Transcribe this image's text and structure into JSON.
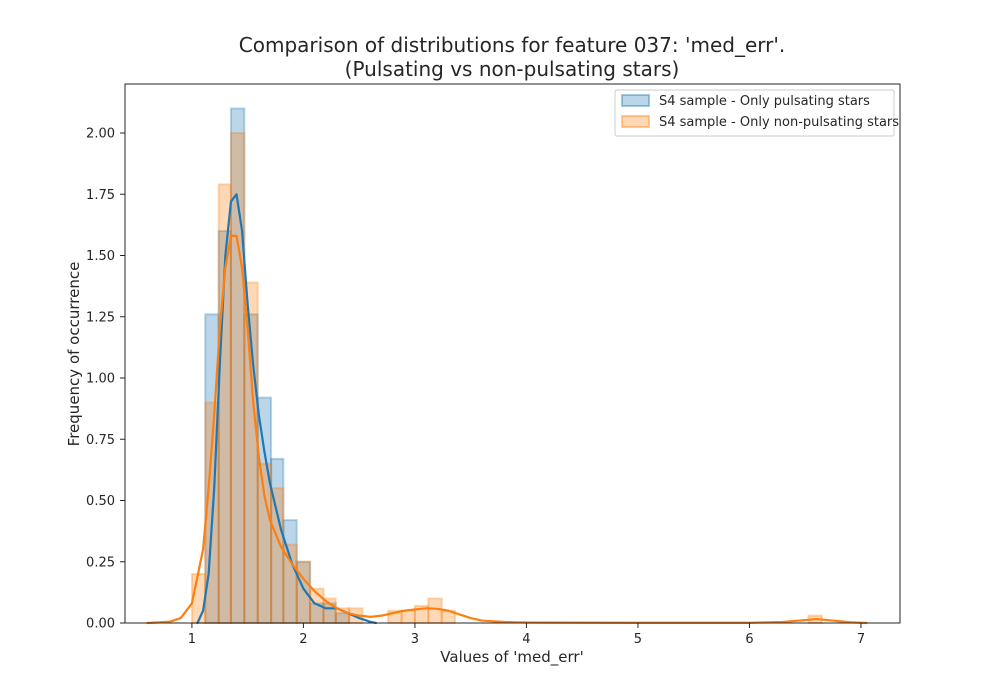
{
  "chart_data": {
    "type": "bar",
    "title": "Comparison of distributions for feature 037: 'med_err'.",
    "subtitle": "(Pulsating vs non-pulsating stars)",
    "xlabel": "Values of 'med_err'",
    "ylabel": "Frequency of occurrence",
    "xlim": [
      0.4,
      7.35
    ],
    "ylim": [
      0,
      2.2
    ],
    "xticks": [
      "1",
      "2",
      "3",
      "4",
      "5",
      "6",
      "7"
    ],
    "yticks": [
      "0.00",
      "0.25",
      "0.50",
      "0.75",
      "1.00",
      "1.25",
      "1.50",
      "1.75",
      "2.00"
    ],
    "grid": false,
    "legend_position": "top-right",
    "series": [
      {
        "name": "S4 sample - Only pulsating stars",
        "color": "#1f77b4",
        "bins": [
          {
            "x0": 1.12,
            "x1": 1.24,
            "y": 1.26
          },
          {
            "x0": 1.24,
            "x1": 1.35,
            "y": 1.6
          },
          {
            "x0": 1.35,
            "x1": 1.47,
            "y": 2.1
          },
          {
            "x0": 1.47,
            "x1": 1.59,
            "y": 1.26
          },
          {
            "x0": 1.59,
            "x1": 1.71,
            "y": 0.92
          },
          {
            "x0": 1.71,
            "x1": 1.82,
            "y": 0.67
          },
          {
            "x0": 1.82,
            "x1": 1.94,
            "y": 0.42
          },
          {
            "x0": 1.94,
            "x1": 2.06,
            "y": 0.25
          },
          {
            "x0": 2.06,
            "x1": 2.18,
            "y": 0.08
          },
          {
            "x0": 2.18,
            "x1": 2.29,
            "y": 0.08
          },
          {
            "x0": 2.29,
            "x1": 2.41,
            "y": 0.04
          }
        ],
        "kde": {
          "x": [
            1.05,
            1.1,
            1.15,
            1.2,
            1.25,
            1.3,
            1.35,
            1.4,
            1.45,
            1.5,
            1.55,
            1.6,
            1.65,
            1.7,
            1.8,
            1.9,
            2.0,
            2.1,
            2.2,
            2.3,
            2.4,
            2.5,
            2.6,
            2.65
          ],
          "y": [
            0.0,
            0.05,
            0.2,
            0.55,
            1.05,
            1.5,
            1.72,
            1.75,
            1.6,
            1.3,
            1.05,
            0.85,
            0.7,
            0.57,
            0.38,
            0.24,
            0.14,
            0.08,
            0.06,
            0.06,
            0.04,
            0.02,
            0.005,
            0.0
          ]
        }
      },
      {
        "name": "S4 sample - Only non-pulsating stars",
        "color": "#ff7f0e",
        "bins": [
          {
            "x0": 1.0,
            "x1": 1.12,
            "y": 0.2
          },
          {
            "x0": 1.12,
            "x1": 1.24,
            "y": 0.9
          },
          {
            "x0": 1.24,
            "x1": 1.35,
            "y": 1.79
          },
          {
            "x0": 1.35,
            "x1": 1.47,
            "y": 2.0
          },
          {
            "x0": 1.47,
            "x1": 1.59,
            "y": 1.39
          },
          {
            "x0": 1.59,
            "x1": 1.71,
            "y": 0.65
          },
          {
            "x0": 1.71,
            "x1": 1.82,
            "y": 0.55
          },
          {
            "x0": 1.82,
            "x1": 1.94,
            "y": 0.32
          },
          {
            "x0": 1.94,
            "x1": 2.06,
            "y": 0.25
          },
          {
            "x0": 2.06,
            "x1": 2.18,
            "y": 0.14
          },
          {
            "x0": 2.18,
            "x1": 2.29,
            "y": 0.1
          },
          {
            "x0": 2.29,
            "x1": 2.41,
            "y": 0.06
          },
          {
            "x0": 2.41,
            "x1": 2.53,
            "y": 0.06
          },
          {
            "x0": 2.76,
            "x1": 2.88,
            "y": 0.05
          },
          {
            "x0": 2.88,
            "x1": 3.0,
            "y": 0.05
          },
          {
            "x0": 3.0,
            "x1": 3.12,
            "y": 0.07
          },
          {
            "x0": 3.12,
            "x1": 3.24,
            "y": 0.1
          },
          {
            "x0": 3.24,
            "x1": 3.36,
            "y": 0.05
          },
          {
            "x0": 6.53,
            "x1": 6.65,
            "y": 0.03
          }
        ],
        "kde": {
          "x": [
            0.6,
            0.8,
            0.9,
            1.0,
            1.1,
            1.15,
            1.2,
            1.25,
            1.3,
            1.35,
            1.4,
            1.45,
            1.5,
            1.55,
            1.6,
            1.65,
            1.7,
            1.8,
            1.9,
            2.0,
            2.1,
            2.2,
            2.3,
            2.4,
            2.5,
            2.6,
            2.7,
            2.8,
            2.9,
            3.0,
            3.1,
            3.2,
            3.3,
            3.4,
            3.5,
            3.6,
            3.8,
            4.0,
            5.0,
            6.0,
            6.3,
            6.5,
            6.6,
            6.7,
            6.9,
            7.05
          ],
          "y": [
            0.0,
            0.005,
            0.02,
            0.08,
            0.3,
            0.55,
            0.85,
            1.2,
            1.45,
            1.58,
            1.58,
            1.45,
            1.2,
            0.9,
            0.68,
            0.52,
            0.42,
            0.31,
            0.24,
            0.18,
            0.13,
            0.09,
            0.06,
            0.04,
            0.03,
            0.025,
            0.03,
            0.04,
            0.05,
            0.055,
            0.06,
            0.058,
            0.05,
            0.035,
            0.02,
            0.01,
            0.004,
            0.002,
            0.001,
            0.001,
            0.004,
            0.012,
            0.016,
            0.012,
            0.003,
            0.0
          ]
        }
      }
    ]
  }
}
